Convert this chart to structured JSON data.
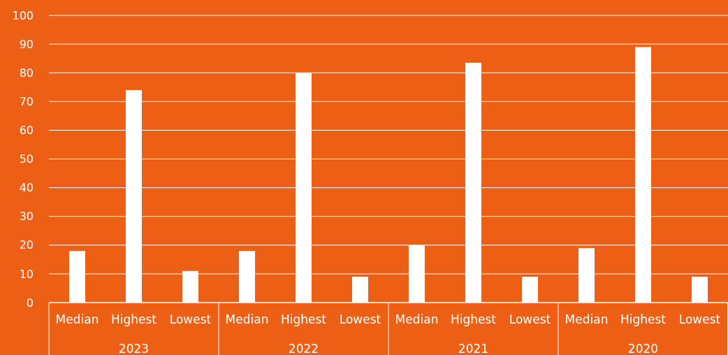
{
  "chart_data": {
    "type": "bar",
    "categories": [
      "Median",
      "Highest",
      "Lowest",
      "Median",
      "Highest",
      "Lowest",
      "Median",
      "Highest",
      "Lowest",
      "Median",
      "Highest",
      "Lowest"
    ],
    "values": [
      18,
      74,
      11,
      18,
      80,
      9,
      20,
      83.5,
      9,
      19,
      89,
      9
    ],
    "color": "#ffffff",
    "ylim": [
      0,
      100
    ],
    "yticks": [
      0,
      10,
      20,
      30,
      40,
      50,
      60,
      70,
      80,
      90,
      100
    ],
    "grid": "y",
    "annotations": [
      "2023",
      "2022",
      "2021",
      "2020"
    ]
  }
}
